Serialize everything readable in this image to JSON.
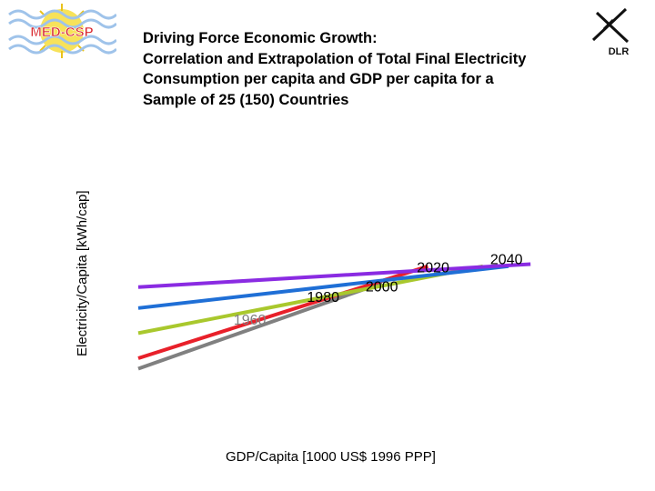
{
  "logos": {
    "left_text": "MED-CSP",
    "right_text": "DLR"
  },
  "chart_data": {
    "type": "line",
    "title": "Driving Force Economic Growth: Correlation and Extrapolation of Total Final Electricity Consumption per capita and GDP per capita for a Sample of 25 (150) Countries",
    "title_lines": [
      "Driving Force Economic Growth:",
      "Correlation and Extrapolation of Total Final Electricity",
      "Consumption per capita and GDP per capita for a",
      "Sample of 25 (150) Countries"
    ],
    "xlabel": "GDP/Capita [1000 US$ 1996 PPP]",
    "ylabel": "Electricity/Capita [kWh/cap]",
    "xlim": [
      0,
      100
    ],
    "ylim": [
      0,
      100
    ],
    "grid": false,
    "legend": "none",
    "series": [
      {
        "name": "1960",
        "color": "#808080",
        "label_color": "#808080",
        "x": [
          0,
          66.5
        ],
        "y": [
          15,
          56
        ],
        "label_xy": [
          26,
          36
        ]
      },
      {
        "name": "1980",
        "color": "#e8202a",
        "label_color": "#000000",
        "x": [
          0,
          79
        ],
        "y": [
          20,
          64
        ],
        "label_xy": [
          46,
          47
        ]
      },
      {
        "name": "2000",
        "color": "#a9c82d",
        "label_color": "#000000",
        "x": [
          0,
          94
        ],
        "y": [
          32,
          64
        ],
        "label_xy": [
          62,
          52
        ]
      },
      {
        "name": "2020",
        "color": "#1f6fd6",
        "label_color": "#000000",
        "x": [
          0,
          101
        ],
        "y": [
          44,
          64
        ],
        "label_xy": [
          76,
          61
        ]
      },
      {
        "name": "2040",
        "color": "#8a2be2",
        "label_color": "#000000",
        "x": [
          0,
          107
        ],
        "y": [
          54,
          65
        ],
        "label_xy": [
          96,
          65
        ]
      }
    ]
  }
}
